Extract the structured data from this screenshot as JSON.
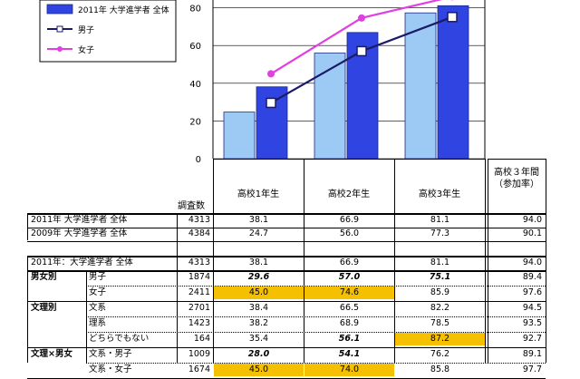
{
  "chart_data": {
    "type": "bar",
    "categories": [
      "高校1年生",
      "高校2年生",
      "高校3年生"
    ],
    "series": [
      {
        "name": "",
        "kind": "bar",
        "color": "#9ccaf5",
        "values": [
          24.7,
          56.0,
          77.3
        ]
      },
      {
        "name": "2011年 大学進学者 全体",
        "kind": "bar",
        "color": "#2f44e0",
        "values": [
          38.1,
          66.9,
          81.1
        ]
      },
      {
        "name": "男子",
        "kind": "line",
        "color": "#1a1a66",
        "values": [
          29.6,
          57.0,
          75.1
        ]
      },
      {
        "name": "女子",
        "kind": "line",
        "color": "#e040e0",
        "values": [
          45.0,
          74.6,
          85.9
        ]
      }
    ],
    "yticks": [
      0,
      20,
      40,
      60,
      80
    ],
    "ylim": [
      0,
      100
    ]
  },
  "table": {
    "count_header": "調査数",
    "extra_header": "高校３年間\n（参加率）",
    "top_rows": [
      {
        "label": "2011年 大学進学者 全体",
        "n": "4313",
        "v": [
          "38.1",
          "66.9",
          "81.1"
        ],
        "t": "94.0"
      },
      {
        "label": "2009年 大学進学者 全体",
        "n": "4384",
        "v": [
          "24.7",
          "56.0",
          "77.3"
        ],
        "t": "90.1"
      }
    ],
    "bottom_total": {
      "label": "2011年：大学進学者 全体",
      "n": "4313",
      "v": [
        "38.1",
        "66.9",
        "81.1"
      ],
      "t": "94.0"
    },
    "groups": [
      {
        "name": "男女別",
        "rows": [
          {
            "label": "男子",
            "n": "1874",
            "v": [
              "29.6",
              "57.0",
              "75.1"
            ],
            "t": "89.4",
            "styles": [
              "bi",
              "bi",
              "bi"
            ]
          },
          {
            "label": "女子",
            "n": "2411",
            "v": [
              "45.0",
              "74.6",
              "85.9"
            ],
            "t": "97.6",
            "styles": [
              "hl",
              "hl",
              ""
            ]
          }
        ]
      },
      {
        "name": "文理別",
        "rows": [
          {
            "label": "文系",
            "n": "2701",
            "v": [
              "38.4",
              "66.5",
              "82.2"
            ],
            "t": "94.5",
            "styles": [
              "",
              "",
              ""
            ]
          },
          {
            "label": "理系",
            "n": "1423",
            "v": [
              "38.2",
              "68.9",
              "78.5"
            ],
            "t": "93.5",
            "styles": [
              "",
              "",
              ""
            ]
          },
          {
            "label": "どちらでもない",
            "n": "164",
            "v": [
              "35.4",
              "56.1",
              "87.2"
            ],
            "t": "92.7",
            "styles": [
              "",
              "bi",
              "hl"
            ]
          }
        ]
      },
      {
        "name": "文理×男女",
        "rows": [
          {
            "label": "文系・男子",
            "n": "1009",
            "v": [
              "28.0",
              "54.1",
              "76.2"
            ],
            "t": "89.1",
            "styles": [
              "bi",
              "bi",
              ""
            ]
          },
          {
            "label": "文系・女子",
            "n": "1674",
            "v": [
              "45.0",
              "74.0",
              "85.8"
            ],
            "t": "97.7",
            "styles": [
              "hl",
              "hl",
              ""
            ]
          }
        ]
      }
    ]
  }
}
